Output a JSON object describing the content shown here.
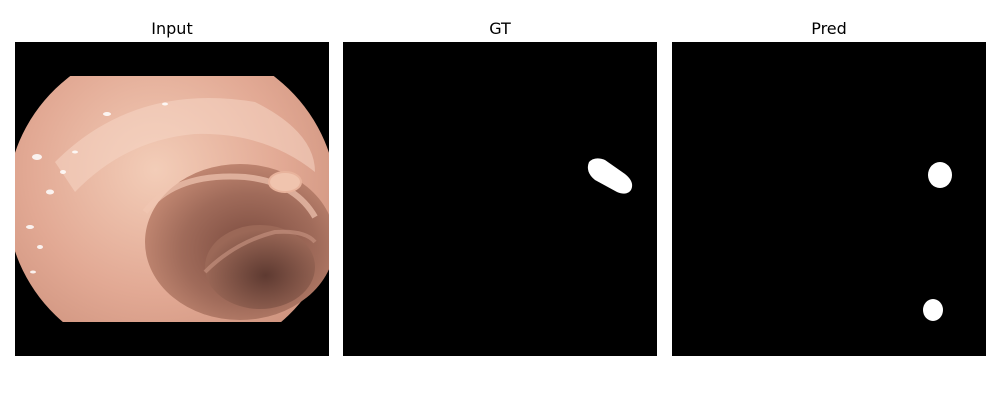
{
  "panels": [
    {
      "title": "Input",
      "kind": "endoscopy-photo"
    },
    {
      "title": "GT",
      "kind": "binary-mask"
    },
    {
      "title": "Pred",
      "kind": "binary-mask"
    }
  ],
  "colors": {
    "background": "#ffffff",
    "mask_background": "#000000",
    "mask_foreground": "#ffffff",
    "mucosa_light": "#f0c0a8",
    "mucosa_mid": "#d99a86",
    "lumen_dark": "#8a5a4c"
  }
}
